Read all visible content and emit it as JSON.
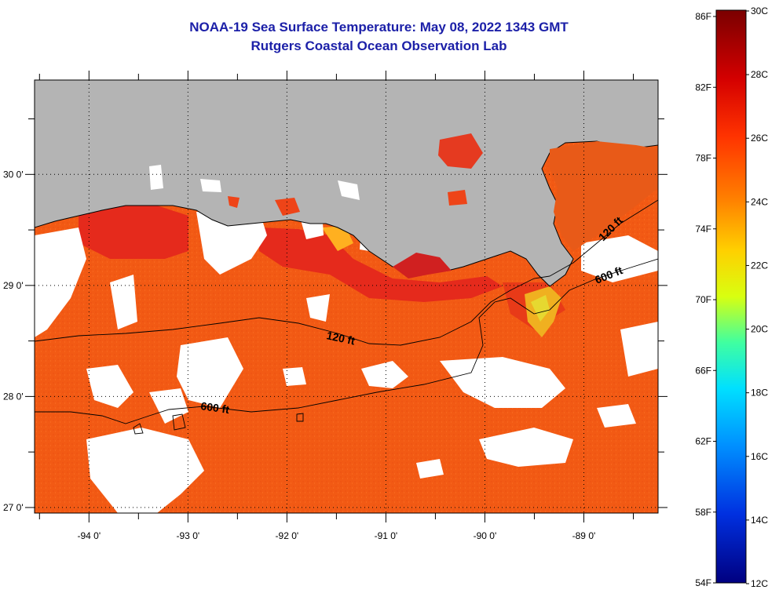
{
  "title_line1": "NOAA-19 Sea Surface Temperature:  May 08, 2022 1343 GMT",
  "title_line2": "Rutgers Coastal Ocean Observation Lab",
  "x_axis": {
    "ticks": [
      {
        "value": -94,
        "label": "-94 0'"
      },
      {
        "value": -93,
        "label": "-93 0'"
      },
      {
        "value": -92,
        "label": "-92 0'"
      },
      {
        "value": -91,
        "label": "-91 0'"
      },
      {
        "value": -90,
        "label": "-90 0'"
      },
      {
        "value": -89,
        "label": "-89 0'"
      }
    ],
    "range": [
      -94.55,
      -88.25
    ]
  },
  "y_axis": {
    "ticks": [
      {
        "value": 30,
        "label": "30 0'"
      },
      {
        "value": 29,
        "label": "29 0'"
      },
      {
        "value": 28,
        "label": "28 0'"
      },
      {
        "value": 27,
        "label": "27 0'"
      }
    ],
    "range": [
      26.95,
      30.85
    ]
  },
  "contours": [
    {
      "label": "120 ft"
    },
    {
      "label": "600 ft"
    },
    {
      "label": "120 ft"
    },
    {
      "label": "600 ft"
    }
  ],
  "colorbar": {
    "fahrenheit": [
      "86F",
      "82F",
      "78F",
      "74F",
      "70F",
      "66F",
      "62F",
      "58F",
      "54F"
    ],
    "celsius": [
      "30C",
      "28C",
      "26C",
      "24C",
      "22C",
      "20C",
      "18C",
      "16C",
      "14C",
      "12C"
    ]
  },
  "colors": {
    "title": "#1c20a8",
    "land": "#b4b4b4",
    "sst_dominant": "#f25a14",
    "sst_warm": "#e52a1c",
    "cloud": "#ffffff"
  }
}
